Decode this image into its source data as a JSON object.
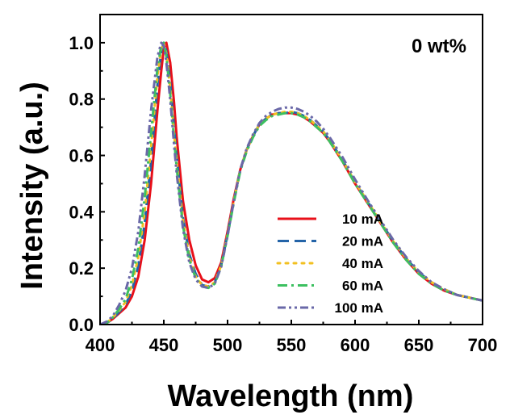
{
  "chart_data": {
    "type": "line",
    "title": "",
    "annotation": "0 wt%",
    "xlabel": "Wavelength (nm)",
    "ylabel": "Intensity (a.u.)",
    "xlim": [
      400,
      700
    ],
    "ylim": [
      0,
      1.1
    ],
    "x_ticks": [
      400,
      450,
      500,
      550,
      600,
      650,
      700
    ],
    "x_tick_labels": [
      "400",
      "450",
      "500",
      "550",
      "600",
      "650",
      "700"
    ],
    "y_ticks": [
      0.0,
      0.2,
      0.4,
      0.6,
      0.8,
      1.0
    ],
    "y_tick_labels": [
      "0.0",
      "0.2",
      "0.4",
      "0.6",
      "0.8",
      "1.0"
    ],
    "grid": false,
    "legend_position": "center-right",
    "series": [
      {
        "name": "10 mA",
        "color": "#e8101a",
        "style": "solid",
        "x": [
          400,
          405,
          410,
          415,
          420,
          425,
          430,
          435,
          440,
          445,
          448,
          450,
          452,
          455,
          458,
          460,
          465,
          470,
          475,
          480,
          485,
          490,
          495,
          500,
          505,
          510,
          515,
          520,
          525,
          530,
          535,
          540,
          545,
          550,
          555,
          560,
          565,
          570,
          575,
          580,
          590,
          600,
          610,
          620,
          630,
          640,
          650,
          660,
          670,
          680,
          690,
          700
        ],
        "y": [
          0.0,
          0.005,
          0.02,
          0.04,
          0.06,
          0.1,
          0.17,
          0.3,
          0.5,
          0.76,
          0.9,
          0.98,
          1.0,
          0.93,
          0.79,
          0.67,
          0.44,
          0.3,
          0.21,
          0.16,
          0.15,
          0.165,
          0.22,
          0.33,
          0.45,
          0.55,
          0.62,
          0.67,
          0.71,
          0.73,
          0.745,
          0.75,
          0.75,
          0.75,
          0.745,
          0.735,
          0.72,
          0.7,
          0.68,
          0.65,
          0.58,
          0.5,
          0.43,
          0.36,
          0.29,
          0.23,
          0.18,
          0.145,
          0.12,
          0.105,
          0.095,
          0.085
        ]
      },
      {
        "name": "20 mA",
        "color": "#2464a8",
        "style": "dashed",
        "x": [
          400,
          405,
          410,
          415,
          420,
          425,
          430,
          435,
          440,
          445,
          448,
          450,
          452,
          455,
          458,
          460,
          465,
          470,
          475,
          480,
          485,
          490,
          495,
          500,
          505,
          510,
          515,
          520,
          525,
          530,
          535,
          540,
          545,
          550,
          555,
          560,
          565,
          570,
          575,
          580,
          590,
          600,
          610,
          620,
          630,
          640,
          650,
          660,
          670,
          680,
          690,
          700
        ],
        "y": [
          0.0,
          0.005,
          0.02,
          0.045,
          0.07,
          0.12,
          0.21,
          0.36,
          0.58,
          0.85,
          0.97,
          1.0,
          0.97,
          0.86,
          0.7,
          0.6,
          0.38,
          0.25,
          0.18,
          0.14,
          0.135,
          0.15,
          0.21,
          0.32,
          0.44,
          0.55,
          0.62,
          0.67,
          0.71,
          0.73,
          0.745,
          0.75,
          0.75,
          0.755,
          0.75,
          0.74,
          0.725,
          0.705,
          0.685,
          0.655,
          0.585,
          0.505,
          0.435,
          0.365,
          0.295,
          0.235,
          0.185,
          0.15,
          0.125,
          0.105,
          0.095,
          0.085
        ]
      },
      {
        "name": "40 mA",
        "color": "#f2c020",
        "style": "dotted",
        "x": [
          400,
          405,
          410,
          415,
          420,
          425,
          430,
          435,
          440,
          445,
          448,
          450,
          452,
          455,
          458,
          460,
          465,
          470,
          475,
          480,
          485,
          490,
          495,
          500,
          505,
          510,
          515,
          520,
          525,
          530,
          535,
          540,
          545,
          550,
          555,
          560,
          565,
          570,
          575,
          580,
          590,
          600,
          610,
          620,
          630,
          640,
          650,
          660,
          670,
          680,
          690,
          700
        ],
        "y": [
          0.0,
          0.005,
          0.025,
          0.05,
          0.08,
          0.14,
          0.24,
          0.4,
          0.63,
          0.88,
          0.98,
          1.0,
          0.96,
          0.84,
          0.68,
          0.58,
          0.37,
          0.24,
          0.17,
          0.14,
          0.135,
          0.15,
          0.21,
          0.32,
          0.44,
          0.55,
          0.62,
          0.67,
          0.71,
          0.73,
          0.745,
          0.75,
          0.755,
          0.755,
          0.75,
          0.74,
          0.725,
          0.705,
          0.685,
          0.655,
          0.585,
          0.505,
          0.435,
          0.365,
          0.295,
          0.235,
          0.185,
          0.15,
          0.125,
          0.105,
          0.095,
          0.085
        ]
      },
      {
        "name": "60 mA",
        "color": "#3cc060",
        "style": "dashdot",
        "x": [
          400,
          405,
          410,
          415,
          420,
          425,
          430,
          435,
          440,
          445,
          448,
          450,
          452,
          455,
          458,
          460,
          465,
          470,
          475,
          480,
          485,
          490,
          495,
          500,
          505,
          510,
          515,
          520,
          525,
          530,
          535,
          540,
          545,
          550,
          555,
          560,
          565,
          570,
          575,
          580,
          590,
          600,
          610,
          620,
          630,
          640,
          650,
          660,
          670,
          680,
          690,
          700
        ],
        "y": [
          0.0,
          0.005,
          0.025,
          0.055,
          0.09,
          0.16,
          0.27,
          0.45,
          0.68,
          0.91,
          0.99,
          1.0,
          0.95,
          0.82,
          0.66,
          0.56,
          0.35,
          0.23,
          0.165,
          0.135,
          0.13,
          0.145,
          0.205,
          0.315,
          0.435,
          0.545,
          0.615,
          0.665,
          0.705,
          0.725,
          0.74,
          0.745,
          0.75,
          0.75,
          0.745,
          0.735,
          0.72,
          0.7,
          0.68,
          0.65,
          0.58,
          0.5,
          0.43,
          0.36,
          0.29,
          0.23,
          0.18,
          0.145,
          0.12,
          0.105,
          0.095,
          0.085
        ]
      },
      {
        "name": "100 mA",
        "color": "#6a68a8",
        "style": "dashdotdot",
        "x": [
          400,
          405,
          410,
          415,
          420,
          425,
          430,
          435,
          440,
          445,
          448,
          450,
          452,
          455,
          458,
          460,
          465,
          470,
          475,
          480,
          485,
          490,
          495,
          500,
          505,
          510,
          515,
          520,
          525,
          530,
          535,
          540,
          545,
          550,
          555,
          560,
          565,
          570,
          575,
          580,
          590,
          600,
          610,
          620,
          630,
          640,
          650,
          660,
          670,
          680,
          690,
          700
        ],
        "y": [
          0.0,
          0.01,
          0.03,
          0.07,
          0.12,
          0.2,
          0.33,
          0.53,
          0.76,
          0.95,
          1.0,
          0.99,
          0.93,
          0.8,
          0.64,
          0.54,
          0.34,
          0.22,
          0.16,
          0.135,
          0.13,
          0.145,
          0.205,
          0.315,
          0.44,
          0.55,
          0.625,
          0.675,
          0.715,
          0.74,
          0.755,
          0.765,
          0.77,
          0.77,
          0.765,
          0.755,
          0.74,
          0.72,
          0.695,
          0.665,
          0.595,
          0.515,
          0.44,
          0.37,
          0.3,
          0.24,
          0.19,
          0.15,
          0.125,
          0.105,
          0.095,
          0.085
        ]
      }
    ]
  }
}
